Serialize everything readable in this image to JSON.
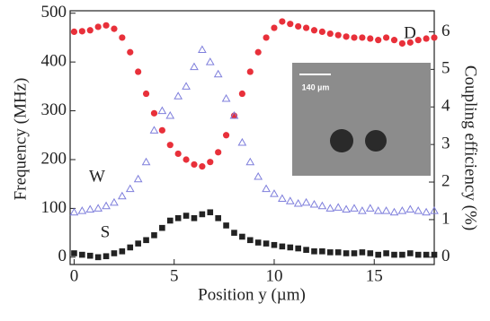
{
  "chart_data": {
    "type": "scatter",
    "x_label": "Position y (µm)",
    "y_label": "Frequency (MHz)",
    "y2_label": "Coupling efficiency (%)",
    "x": [
      0,
      0.4,
      0.8,
      1.2,
      1.6,
      2.0,
      2.4,
      2.8,
      3.2,
      3.6,
      4.0,
      4.4,
      4.8,
      5.2,
      5.6,
      6.0,
      6.4,
      6.8,
      7.2,
      7.6,
      8.0,
      8.4,
      8.8,
      9.2,
      9.6,
      10.0,
      10.4,
      10.8,
      11.2,
      11.6,
      12.0,
      12.4,
      12.8,
      13.2,
      13.6,
      14.0,
      14.4,
      14.8,
      15.2,
      15.6,
      16.0,
      16.4,
      16.8,
      17.2,
      17.6,
      18.0
    ],
    "series": [
      {
        "name": "D",
        "color": "#e8303a",
        "marker": "circle",
        "values": [
          462,
          463,
          465,
          472,
          475,
          468,
          450,
          420,
          380,
          335,
          295,
          260,
          230,
          212,
          200,
          190,
          186,
          195,
          215,
          250,
          290,
          335,
          380,
          420,
          450,
          470,
          483,
          478,
          473,
          470,
          465,
          462,
          458,
          455,
          452,
          450,
          450,
          448,
          445,
          450,
          445,
          438,
          440,
          445,
          448,
          450
        ]
      },
      {
        "name": "W",
        "color": "#7f7fdc",
        "marker": "triangle",
        "values": [
          92,
          95,
          98,
          100,
          105,
          112,
          125,
          140,
          160,
          195,
          260,
          300,
          290,
          330,
          350,
          390,
          425,
          400,
          375,
          325,
          290,
          235,
          195,
          165,
          140,
          130,
          120,
          115,
          110,
          112,
          108,
          105,
          100,
          102,
          98,
          100,
          95,
          100,
          95,
          95,
          92,
          95,
          98,
          95,
          92,
          95
        ]
      },
      {
        "name": "S",
        "color": "#222222",
        "marker": "square",
        "values": [
          8,
          5,
          3,
          0,
          2,
          8,
          12,
          20,
          28,
          35,
          45,
          60,
          75,
          80,
          85,
          80,
          88,
          92,
          80,
          65,
          50,
          42,
          35,
          30,
          28,
          25,
          22,
          20,
          18,
          15,
          12,
          12,
          10,
          10,
          8,
          8,
          10,
          8,
          5,
          8,
          5,
          5,
          8,
          5,
          5,
          5
        ]
      }
    ],
    "xlim": [
      -0.2,
      18
    ],
    "xticks": [
      0,
      5,
      10,
      15
    ],
    "ylim": [
      -15,
      505
    ],
    "yticks": [
      0,
      100,
      200,
      300,
      400,
      500
    ],
    "y2lim": [
      -0.195,
      6.56
    ],
    "y2ticks": [
      0,
      1,
      2,
      3,
      4,
      5,
      6
    ],
    "inset_scale": "140 µm"
  }
}
